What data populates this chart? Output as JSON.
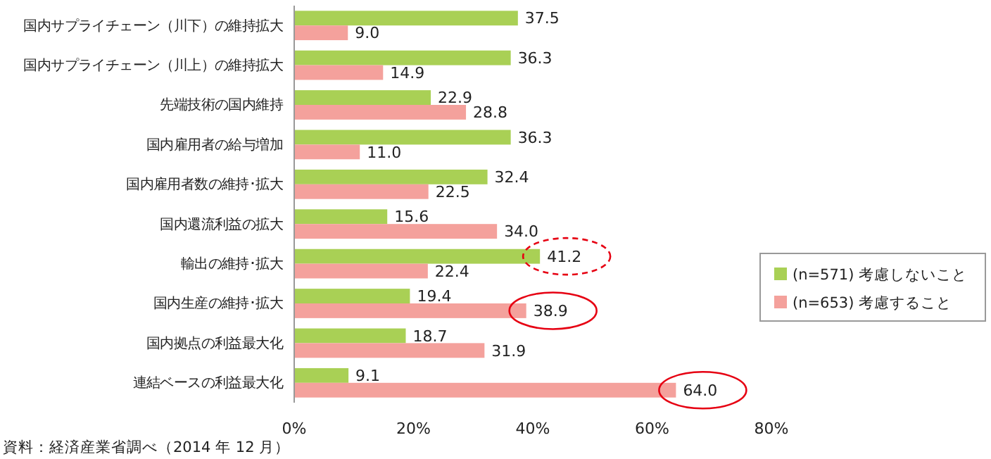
{
  "chart_data": {
    "type": "bar",
    "orientation": "horizontal",
    "categories": [
      "国内サプライチェーン（川下）の維持拡大",
      "国内サプライチェーン（川上）の維持拡大",
      "先端技術の国内維持",
      "国内雇用者の給与増加",
      "国内雇用者数の維持･拡大",
      "国内還流利益の拡大",
      "輸出の維持･拡大",
      "国内生産の維持･拡大",
      "国内拠点の利益最大化",
      "連結ベースの利益最大化"
    ],
    "series": [
      {
        "name": "(n=571)  考慮しないこと",
        "color": "#a9d055",
        "values": [
          37.5,
          36.3,
          22.9,
          36.3,
          32.4,
          15.6,
          41.2,
          19.4,
          18.7,
          9.1
        ],
        "value_labels": [
          "37.5",
          "36.3",
          "22.9",
          "36.3",
          "32.4",
          "15.6",
          "41.2",
          "19.4",
          "18.7",
          "9.1"
        ]
      },
      {
        "name": "(n=653)  考慮すること",
        "color": "#f4a19c",
        "values": [
          9.0,
          14.9,
          28.8,
          11.0,
          22.5,
          34.0,
          22.4,
          38.9,
          31.9,
          64.0
        ],
        "value_labels": [
          "9.0",
          "14.9",
          "28.8",
          "11.0",
          "22.5",
          "34.0",
          "22.4",
          "38.9",
          "31.9",
          "64.0"
        ]
      }
    ],
    "xlim": [
      0,
      80
    ],
    "xticks": [
      {
        "value": 0,
        "label": "0%"
      },
      {
        "value": 20,
        "label": "20%"
      },
      {
        "value": 40,
        "label": "40%"
      },
      {
        "value": 60,
        "label": "60%"
      },
      {
        "value": 80,
        "label": "80%"
      }
    ],
    "legend": "right",
    "grid": false,
    "annotations": [
      "資料：経済産業省調べ（2014 年 12 月）"
    ]
  }
}
